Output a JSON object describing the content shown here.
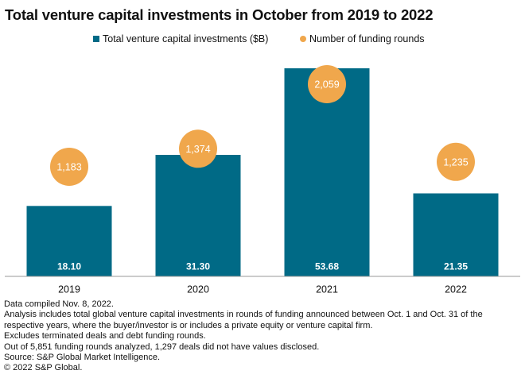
{
  "chart_data": {
    "type": "bar",
    "title": "Total venture capital investments in October from 2019 to 2022",
    "categories": [
      "2019",
      "2020",
      "2021",
      "2022"
    ],
    "series": [
      {
        "name": "Total venture capital investments ($B)",
        "type": "bar",
        "color": "#006a86",
        "values": [
          18.1,
          31.3,
          53.68,
          21.35
        ],
        "labels": [
          "18.10",
          "31.30",
          "53.68",
          "21.35"
        ]
      },
      {
        "name": "Number of funding rounds",
        "type": "scatter",
        "color": "#f0a74c",
        "values": [
          1183,
          1374,
          2059,
          1235
        ],
        "labels": [
          "1,183",
          "1,374",
          "2,059",
          "1,235"
        ]
      }
    ],
    "xlabel": "",
    "ylabel": "",
    "ylim": [
      0,
      54
    ],
    "y2lim": [
      0,
      2200
    ],
    "grid": false,
    "legend_position": "top-center"
  },
  "notes": [
    "Data compiled Nov. 8, 2022.",
    "Analysis includes total global venture capital investments in rounds of funding announced between Oct. 1 and Oct. 31 of the",
    "respective years, where the buyer/investor is or includes a private equity or venture capital firm.",
    "Excludes terminated deals and debt funding rounds.",
    "Out of 5,851 funding rounds analyzed, 1,297 deals did not have values disclosed.",
    "Source: S&P Global Market Intelligence.",
    "© 2022 S&P Global."
  ]
}
